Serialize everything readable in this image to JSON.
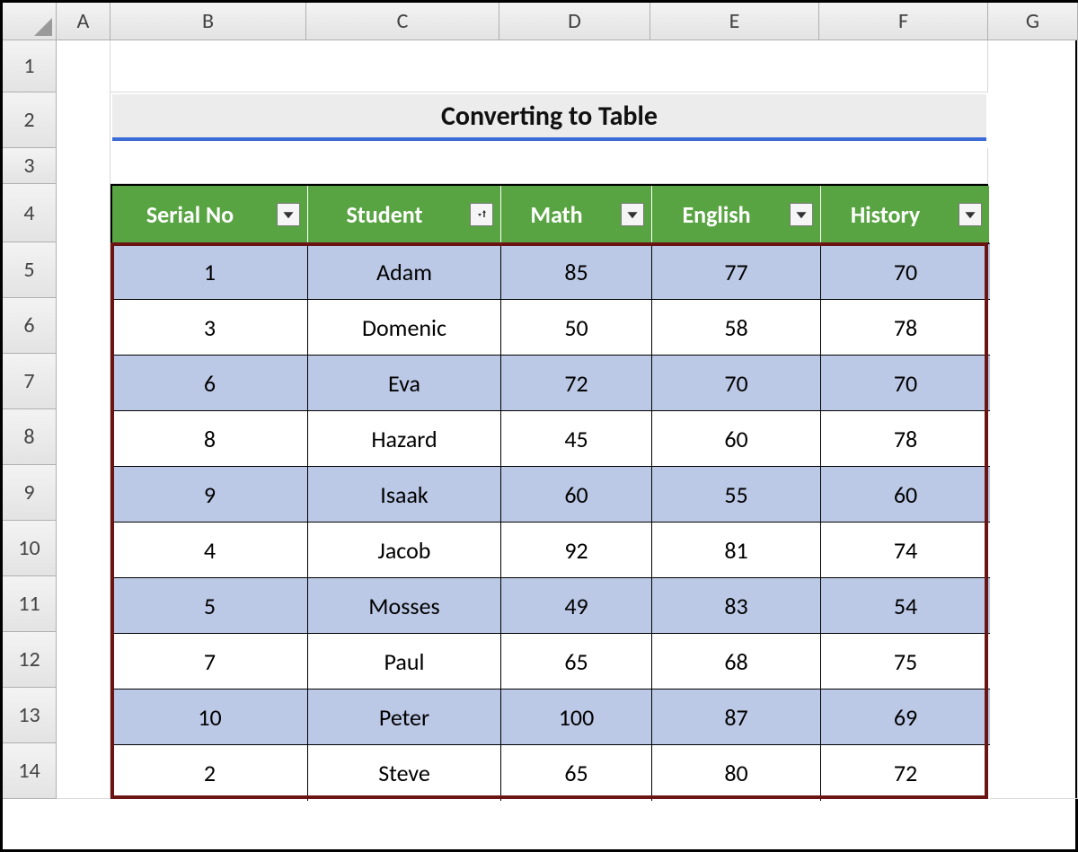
{
  "columns_letters": [
    "A",
    "B",
    "C",
    "D",
    "E",
    "F",
    "G"
  ],
  "row_numbers": [
    "1",
    "2",
    "3",
    "4",
    "5",
    "6",
    "7",
    "8",
    "9",
    "10",
    "11",
    "12",
    "13",
    "14"
  ],
  "title": "Converting to Table",
  "table": {
    "type": "table",
    "header_bg": "#58a442",
    "header_fg": "#ffffff",
    "band_color": "#bcc9e6",
    "plain_color": "#ffffff",
    "selection_border_color": "#6a1414",
    "title_underline_color": "#3b6bd6",
    "columns": [
      {
        "label": "Serial No",
        "filter": "dropdown"
      },
      {
        "label": "Student",
        "filter": "sort-asc"
      },
      {
        "label": "Math",
        "filter": "dropdown"
      },
      {
        "label": "English",
        "filter": "dropdown"
      },
      {
        "label": "History",
        "filter": "dropdown"
      }
    ],
    "rows": [
      {
        "band": true,
        "cells": [
          "1",
          "Adam",
          "85",
          "77",
          "70"
        ]
      },
      {
        "band": false,
        "cells": [
          "3",
          "Domenic",
          "50",
          "58",
          "78"
        ]
      },
      {
        "band": true,
        "cells": [
          "6",
          "Eva",
          "72",
          "70",
          "70"
        ]
      },
      {
        "band": false,
        "cells": [
          "8",
          "Hazard",
          "45",
          "60",
          "78"
        ]
      },
      {
        "band": true,
        "cells": [
          "9",
          "Isaak",
          "60",
          "55",
          "60"
        ]
      },
      {
        "band": false,
        "cells": [
          "4",
          "Jacob",
          "92",
          "81",
          "74"
        ]
      },
      {
        "band": true,
        "cells": [
          "5",
          "Mosses",
          "49",
          "83",
          "54"
        ]
      },
      {
        "band": false,
        "cells": [
          "7",
          "Paul",
          "65",
          "68",
          "75"
        ]
      },
      {
        "band": true,
        "cells": [
          "10",
          "Peter",
          "100",
          "87",
          "69"
        ]
      },
      {
        "band": false,
        "cells": [
          "2",
          "Steve",
          "65",
          "80",
          "72"
        ]
      }
    ]
  }
}
